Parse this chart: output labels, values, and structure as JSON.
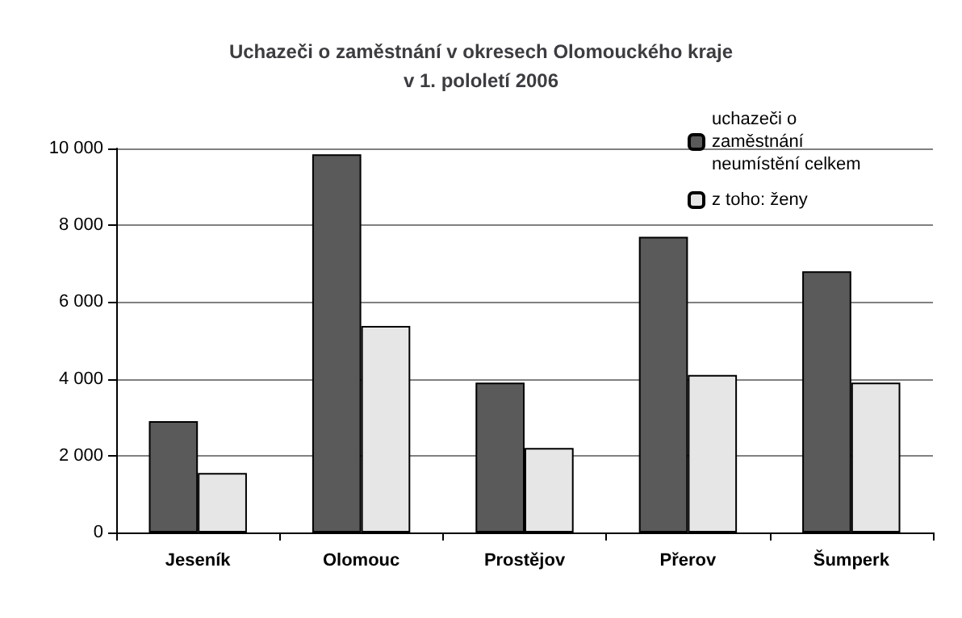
{
  "chart_data": {
    "type": "bar",
    "title": "Uchazeči o zaměstnání v okresech Olomouckého kraje\nv 1. pololetí 2006",
    "categories": [
      "Jeseník",
      "Olomouc",
      "Prostějov",
      "Přerov",
      "Šumperk"
    ],
    "series": [
      {
        "name": "uchazeči o zaměstnání neumístění celkem",
        "color": "#5a5a5a",
        "values": [
          2900,
          9850,
          3900,
          7700,
          6800
        ]
      },
      {
        "name": "z toho: ženy",
        "color": "#e6e6e6",
        "values": [
          1550,
          5380,
          2200,
          4100,
          3900
        ]
      }
    ],
    "ylim": [
      0,
      10000
    ],
    "yticks": [
      0,
      2000,
      4000,
      6000,
      8000,
      10000
    ],
    "grid": "y",
    "legend": "top right"
  }
}
